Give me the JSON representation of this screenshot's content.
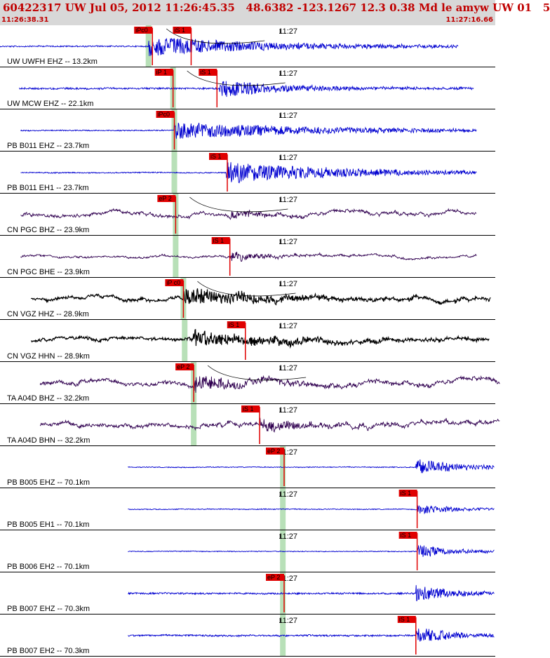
{
  "header": {
    "title": "60422317 UW Jul 05, 2012 11:26:45.35   48.6382 -123.1267 12.3 0.38 Md le amyw UW 01   5",
    "start_time": "11:26:38.31",
    "end_time": "11:27:16.66"
  },
  "colors": {
    "header_bg": "#d8d8d8",
    "header_text": "#c00000",
    "trace_blue": "#0000d0",
    "trace_purple": "#300050",
    "trace_black": "#000000",
    "pick_red": "#e00000",
    "predicted_green": "#b8e0b8"
  },
  "chart_data": {
    "type": "line",
    "title": "60422317 UW Jul 05, 2012 11:26:45.35   48.6382 -123.1267 12.3 0.38 Md le amyw UW 01   5",
    "time_window": {
      "start": "11:26:38.31",
      "end": "11:27:16.66"
    },
    "x_tick_labels": [
      "11:27"
    ],
    "series": [
      {
        "name": "UW UWFH EHZ -- 13.2km",
        "color": "blue",
        "trace_start_s": 0.0,
        "trace_end_s": 35.5,
        "first_arrival_s": 11.5,
        "signal_end_s": 30,
        "amplitude": 0.45,
        "noise": 0.06,
        "picks": [
          {
            "label": "iPc0",
            "time_s": 11.8
          },
          {
            "label": "iS 1",
            "time_s": 14.8
          }
        ],
        "predicted_s": 11.5,
        "moveout_curve": true
      },
      {
        "name": "UW MCW EHZ -- 22.1km",
        "color": "blue",
        "trace_start_s": 1.5,
        "trace_end_s": 36.7,
        "first_arrival_s": 17.0,
        "signal_end_s": 27,
        "amplitude": 0.4,
        "noise": 0.08,
        "picks": [
          {
            "label": "iP 1",
            "time_s": 13.4
          },
          {
            "label": "iS 1",
            "time_s": 16.8
          }
        ],
        "predicted_s": 13.4,
        "moveout_curve": true
      },
      {
        "name": "PB B011 EHZ -- 23.7km",
        "color": "blue",
        "trace_start_s": 1.6,
        "trace_end_s": 36.9,
        "first_arrival_s": 13.5,
        "signal_end_s": 36,
        "amplitude": 0.4,
        "noise": 0.05,
        "picks": [
          {
            "label": "iPc0",
            "time_s": 13.5
          }
        ],
        "predicted_s": 13.5
      },
      {
        "name": "PB B011 EH1 -- 23.7km",
        "color": "blue",
        "trace_start_s": 1.6,
        "trace_end_s": 36.9,
        "first_arrival_s": 17.5,
        "signal_end_s": 36,
        "amplitude": 0.48,
        "noise": 0.05,
        "picks": [
          {
            "label": "iS 1",
            "time_s": 17.6
          }
        ],
        "predicted_s": 13.5
      },
      {
        "name": "CN PGC BHZ -- 23.9km",
        "color": "purple",
        "trace_start_s": 1.6,
        "trace_end_s": 36.9,
        "first_arrival_s": 17.8,
        "signal_end_s": 22,
        "amplitude": 0.22,
        "noise": 0.1,
        "picks": [
          {
            "label": "eP 2",
            "time_s": 13.6
          }
        ],
        "predicted_s": 13.6,
        "moveout_curve": true
      },
      {
        "name": "CN PGC BHE -- 23.9km",
        "color": "purple",
        "trace_start_s": 1.6,
        "trace_end_s": 36.9,
        "first_arrival_s": 17.8,
        "signal_end_s": 24,
        "amplitude": 0.18,
        "noise": 0.06,
        "picks": [
          {
            "label": "iS 1",
            "time_s": 17.8
          }
        ],
        "predicted_s": 13.6
      },
      {
        "name": "CN VGZ HHZ -- 28.9km",
        "color": "black",
        "trace_start_s": 2.4,
        "trace_end_s": 38.0,
        "first_arrival_s": 14.2,
        "signal_end_s": 26,
        "amplitude": 0.4,
        "noise": 0.1,
        "picks": [
          {
            "label": "iP c0",
            "time_s": 14.2
          }
        ],
        "predicted_s": 14.2,
        "moveout_curve": true
      },
      {
        "name": "CN VGZ HHN -- 28.9km",
        "color": "black",
        "trace_start_s": 2.4,
        "trace_end_s": 37.9,
        "first_arrival_s": 14.8,
        "signal_end_s": 28,
        "amplitude": 0.38,
        "noise": 0.1,
        "picks": [
          {
            "label": "iS 1",
            "time_s": 19.0
          }
        ],
        "predicted_s": 14.3
      },
      {
        "name": "TA A04D BHZ -- 32.2km",
        "color": "purple",
        "trace_start_s": 3.1,
        "trace_end_s": 38.7,
        "first_arrival_s": 15.0,
        "signal_end_s": 25,
        "amplitude": 0.35,
        "noise": 0.12,
        "picks": [
          {
            "label": "eP 2",
            "time_s": 15.0
          }
        ],
        "predicted_s": 15.0,
        "moveout_curve": true
      },
      {
        "name": "TA A04D BHN -- 32.2km",
        "color": "purple",
        "trace_start_s": 3.1,
        "trace_end_s": 38.7,
        "first_arrival_s": 20.1,
        "signal_end_s": 26,
        "amplitude": 0.35,
        "noise": 0.12,
        "picks": [
          {
            "label": "iS 1",
            "time_s": 20.1
          }
        ],
        "predicted_s": 15.0
      },
      {
        "name": "PB B005 EHZ -- 70.1km",
        "color": "blue",
        "trace_start_s": 9.9,
        "trace_end_s": 38.3,
        "first_arrival_s": 32.2,
        "signal_end_s": 38,
        "amplitude": 0.42,
        "noise": 0.04,
        "picks": [
          {
            "label": "eP 2",
            "time_s": 22.0
          }
        ],
        "predicted_s": 21.9
      },
      {
        "name": "PB B005 EH1 -- 70.1km",
        "color": "blue",
        "trace_start_s": 9.9,
        "trace_end_s": 38.3,
        "first_arrival_s": 32.3,
        "signal_end_s": 38,
        "amplitude": 0.25,
        "noise": 0.04,
        "picks": [
          {
            "label": "iS 1",
            "time_s": 32.3
          }
        ],
        "predicted_s": 21.9
      },
      {
        "name": "PB B006 EH2 -- 70.1km",
        "color": "blue",
        "trace_start_s": 9.9,
        "trace_end_s": 38.3,
        "first_arrival_s": 32.3,
        "signal_end_s": 38,
        "amplitude": 0.3,
        "noise": 0.04,
        "picks": [
          {
            "label": "iS 1",
            "time_s": 32.3
          }
        ],
        "predicted_s": 21.9
      },
      {
        "name": "PB B007 EHZ -- 70.3km",
        "color": "blue",
        "trace_start_s": 9.9,
        "trace_end_s": 38.3,
        "first_arrival_s": 32.2,
        "signal_end_s": 38,
        "amplitude": 0.4,
        "noise": 0.08,
        "picks": [
          {
            "label": "eP 2",
            "time_s": 22.0
          }
        ],
        "predicted_s": 21.9
      },
      {
        "name": "PB B007 EH2 -- 70.3km",
        "color": "blue",
        "trace_start_s": 9.9,
        "trace_end_s": 38.3,
        "first_arrival_s": 32.2,
        "signal_end_s": 38,
        "amplitude": 0.4,
        "noise": 0.08,
        "picks": [
          {
            "label": "iS 1",
            "time_s": 32.2
          }
        ],
        "predicted_s": 21.9
      }
    ]
  }
}
